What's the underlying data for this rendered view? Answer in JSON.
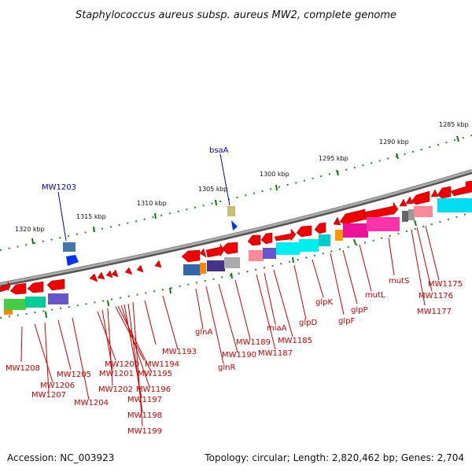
{
  "title": "Staphylococcus aureus subsp. aureus MW2, complete genome",
  "footer": {
    "accession": "Accession: NC_003923",
    "summary": "Topology: circular; Length: 2,820,462 bp; Genes: 2,704"
  },
  "colors": {
    "gene_red": "#ee0000",
    "blue_feature": "#0033ee",
    "label_red": "#cc0000",
    "label_blue": "#0000bb",
    "tick_green": "#228822",
    "backbone": "#888888"
  },
  "scale_labels": [
    {
      "id": "1285",
      "text": "1285 kbp"
    },
    {
      "id": "1290",
      "text": "1290 kbp"
    },
    {
      "id": "1295",
      "text": "1295 kbp"
    },
    {
      "id": "1300",
      "text": "1300 kbp"
    },
    {
      "id": "1305",
      "text": "1305 kbp"
    },
    {
      "id": "1310",
      "text": "1310 kbp"
    },
    {
      "id": "1315",
      "text": "1315 kbp"
    },
    {
      "id": "1320",
      "text": "1320 kbp"
    }
  ],
  "blue_labels": [
    {
      "id": "MW1203",
      "text": "MW1203"
    },
    {
      "id": "bsaA",
      "text": "bsaA"
    }
  ],
  "gene_labels": [
    {
      "id": "MW1208",
      "text": "MW1208"
    },
    {
      "id": "MW1206",
      "text": "MW1206"
    },
    {
      "id": "MW1207",
      "text": "MW1207"
    },
    {
      "id": "MW1205",
      "text": "MW1205"
    },
    {
      "id": "MW1204",
      "text": "MW1204"
    },
    {
      "id": "MW1200",
      "text": "MW1200"
    },
    {
      "id": "MW1201",
      "text": "MW1201"
    },
    {
      "id": "MW1202",
      "text": "MW1202"
    },
    {
      "id": "MW1194",
      "text": "MW1194"
    },
    {
      "id": "MW1195",
      "text": "MW1195"
    },
    {
      "id": "MW1196",
      "text": "MW1196"
    },
    {
      "id": "MW1197",
      "text": "MW1197"
    },
    {
      "id": "MW1198",
      "text": "MW1198"
    },
    {
      "id": "MW1199",
      "text": "MW1199"
    },
    {
      "id": "MW1193",
      "text": "MW1193"
    },
    {
      "id": "glnA",
      "text": "glnA"
    },
    {
      "id": "glnR",
      "text": "glnR"
    },
    {
      "id": "MW1190",
      "text": "MW1190"
    },
    {
      "id": "MW1189",
      "text": "MW1189"
    },
    {
      "id": "MW1187",
      "text": "MW1187"
    },
    {
      "id": "miaA",
      "text": "miaA"
    },
    {
      "id": "MW1185",
      "text": "MW1185"
    },
    {
      "id": "glpD",
      "text": "glpD"
    },
    {
      "id": "glpK",
      "text": "glpK"
    },
    {
      "id": "glpF",
      "text": "glpF"
    },
    {
      "id": "glpP",
      "text": "glpP"
    },
    {
      "id": "mutL",
      "text": "mutL"
    },
    {
      "id": "mutS",
      "text": "mutS"
    },
    {
      "id": "MW1175",
      "text": "MW1175"
    },
    {
      "id": "MW1176",
      "text": "MW1176"
    },
    {
      "id": "MW1177",
      "text": "MW1177"
    }
  ]
}
